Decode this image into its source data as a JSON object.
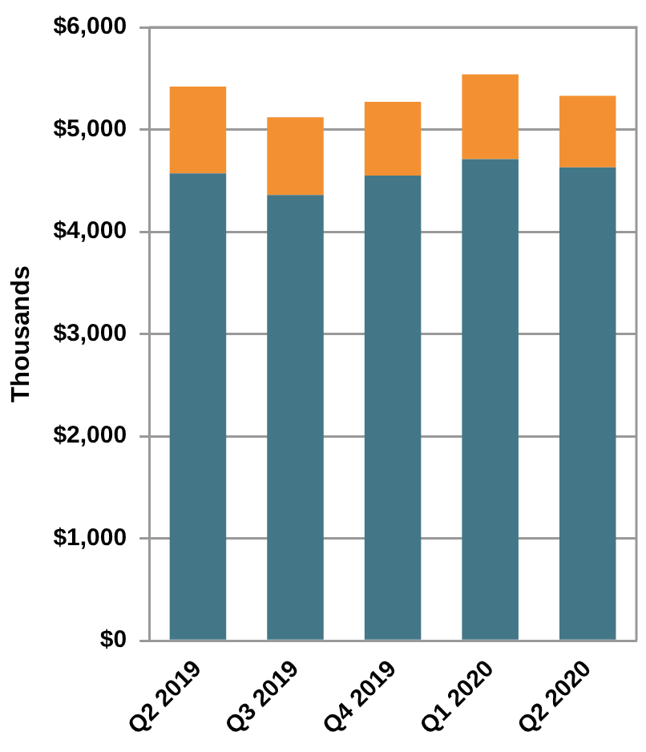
{
  "chart_data": {
    "type": "bar",
    "stacked": true,
    "ylabel": "Thousands",
    "categories": [
      "Q2 2019",
      "Q3 2019",
      "Q4 2019",
      "Q1 2020",
      "Q2 2020"
    ],
    "series": [
      {
        "color": "#437787",
        "values": [
          4570,
          4360,
          4550,
          4710,
          4630
        ]
      },
      {
        "color": "#f39132",
        "values": [
          850,
          760,
          720,
          830,
          700
        ]
      }
    ],
    "ylim": [
      0,
      6000
    ],
    "yticks": [
      {
        "value": 0,
        "label": "$0"
      },
      {
        "value": 1000,
        "label": "$1,000"
      },
      {
        "value": 2000,
        "label": "$2,000"
      },
      {
        "value": 3000,
        "label": "$3,000"
      },
      {
        "value": 4000,
        "label": "$4,000"
      },
      {
        "value": 5000,
        "label": "$5,000"
      },
      {
        "value": 6000,
        "label": "$6,000"
      }
    ],
    "grid": "y",
    "legend": false
  }
}
